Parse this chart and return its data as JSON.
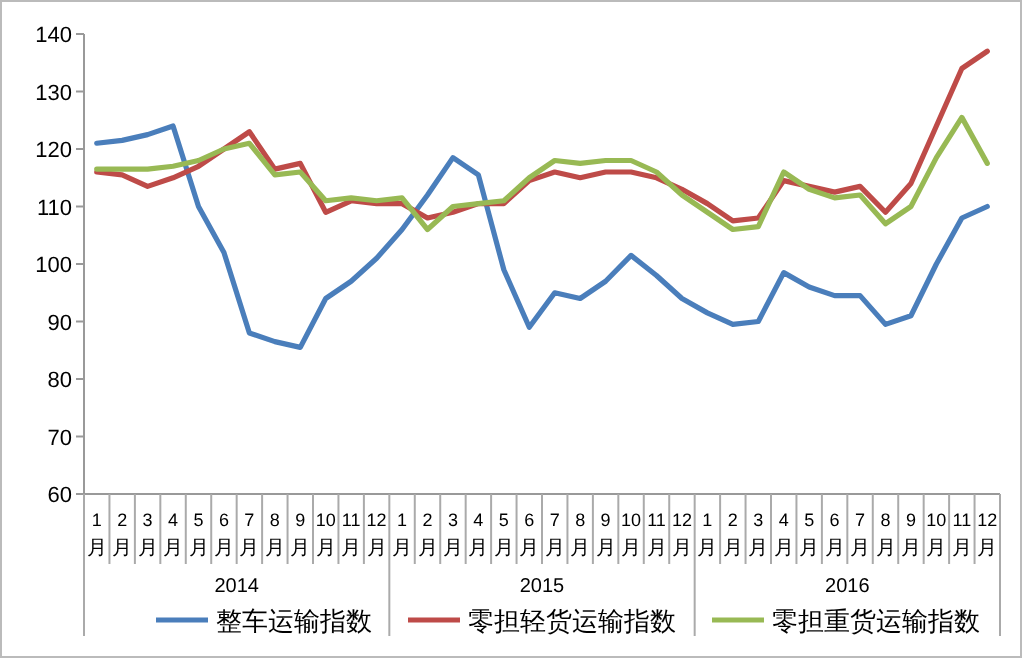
{
  "chart_data": {
    "type": "line",
    "categories": [
      "1月",
      "2月",
      "3月",
      "4月",
      "5月",
      "6月",
      "7月",
      "8月",
      "9月",
      "10月",
      "11月",
      "12月",
      "1月",
      "2月",
      "3月",
      "4月",
      "5月",
      "6月",
      "7月",
      "8月",
      "9月",
      "10月",
      "11月",
      "12月",
      "1月",
      "2月",
      "3月",
      "4月",
      "5月",
      "6月",
      "7月",
      "8月",
      "9月",
      "10月",
      "11月",
      "12月"
    ],
    "series": [
      {
        "name": "整车运输指数",
        "color": "#4a7ebb",
        "values": [
          121,
          121.5,
          122.5,
          124,
          110,
          102,
          88,
          86.5,
          85.5,
          94,
          97,
          101,
          106,
          112,
          118.5,
          115.5,
          99,
          89,
          95,
          94,
          97,
          101.5,
          98,
          94,
          91.5,
          89.5,
          90,
          98.5,
          96,
          94.5,
          94.5,
          89.5,
          91,
          100,
          108,
          110
        ]
      },
      {
        "name": "零担轻货运输指数",
        "color": "#be4b48",
        "values": [
          116,
          115.5,
          113.5,
          115,
          117,
          120,
          123,
          116.5,
          117.5,
          109,
          111,
          110.5,
          110.5,
          108,
          109,
          110.5,
          110.5,
          114.5,
          116,
          115,
          116,
          116,
          115,
          113,
          110.5,
          107.5,
          108,
          114.5,
          113.5,
          112.5,
          113.5,
          109,
          114,
          124,
          134,
          137
        ]
      },
      {
        "name": "零担重货运输指数",
        "color": "#98b954",
        "values": [
          116.5,
          116.5,
          116.5,
          117,
          118,
          120,
          121,
          115.5,
          116,
          111,
          111.5,
          111,
          111.5,
          106,
          110,
          110.5,
          111,
          115,
          118,
          117.5,
          118,
          118,
          116,
          112,
          109,
          106,
          106.5,
          116,
          113,
          111.5,
          112,
          107,
          110,
          118.5,
          125.5,
          117.5
        ]
      }
    ],
    "annotations": [
      "2014",
      "2015",
      "2016"
    ],
    "ylim": [
      60,
      140
    ],
    "yticks": [
      60,
      70,
      80,
      90,
      100,
      110,
      120,
      130,
      140
    ],
    "grid": false,
    "legend": "bottom",
    "marker": "none",
    "line_style": "solid"
  }
}
